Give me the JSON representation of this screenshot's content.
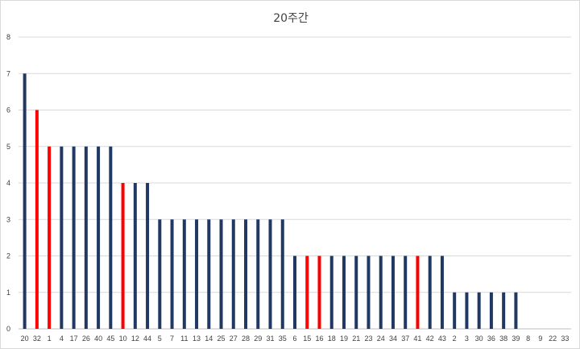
{
  "chart_data": {
    "type": "bar",
    "title": "20주간",
    "xlabel": "",
    "ylabel": "",
    "ylim": [
      0,
      8
    ],
    "yticks": [
      0,
      1,
      2,
      3,
      4,
      5,
      6,
      7,
      8
    ],
    "grid": true,
    "legend": "none",
    "categories": [
      "20",
      "32",
      "1",
      "4",
      "17",
      "26",
      "40",
      "45",
      "10",
      "12",
      "44",
      "5",
      "7",
      "11",
      "13",
      "14",
      "25",
      "27",
      "28",
      "29",
      "31",
      "35",
      "6",
      "15",
      "16",
      "18",
      "19",
      "21",
      "23",
      "24",
      "34",
      "37",
      "41",
      "42",
      "43",
      "2",
      "3",
      "30",
      "36",
      "38",
      "39",
      "8",
      "9",
      "22",
      "33"
    ],
    "values": [
      7,
      6,
      5,
      5,
      5,
      5,
      5,
      5,
      4,
      4,
      4,
      3,
      3,
      3,
      3,
      3,
      3,
      3,
      3,
      3,
      3,
      3,
      2,
      2,
      2,
      2,
      2,
      2,
      2,
      2,
      2,
      2,
      2,
      2,
      2,
      1,
      1,
      1,
      1,
      1,
      1,
      0,
      0,
      0,
      0
    ],
    "colors": {
      "default": "#1f3864",
      "highlight": "#ff0000",
      "grid": "#d9d9d9",
      "axis": "#bfbfbf"
    },
    "highlighted": [
      "32",
      "1",
      "10",
      "15",
      "16",
      "41"
    ]
  }
}
